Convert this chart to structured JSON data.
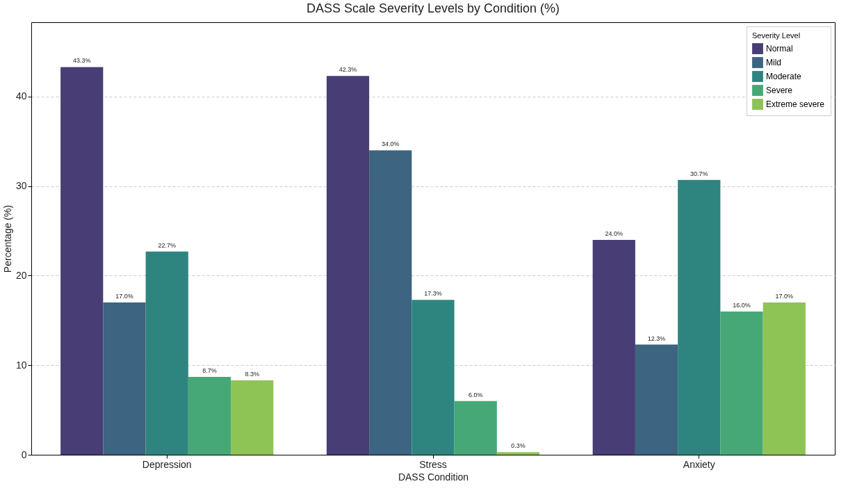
{
  "chart_data": {
    "type": "bar",
    "title": "DASS Scale Severity Levels by Condition (%)",
    "xlabel": "DASS Condition",
    "ylabel": "Percentage (%)",
    "legend_title": "Severity Level",
    "categories": [
      "Depression",
      "Stress",
      "Anxiety"
    ],
    "series": [
      {
        "name": "Normal",
        "color": "#483d74",
        "values": [
          43.3,
          42.3,
          24.0
        ],
        "value_labels": [
          "43.3%",
          "42.3%",
          "24.0%"
        ]
      },
      {
        "name": "Mild",
        "color": "#3d6480",
        "values": [
          17.0,
          34.0,
          12.3
        ],
        "value_labels": [
          "17.0%",
          "34.0%",
          "12.3%"
        ]
      },
      {
        "name": "Moderate",
        "color": "#2e8580",
        "values": [
          22.7,
          17.3,
          30.7
        ],
        "value_labels": [
          "22.7%",
          "17.3%",
          "30.7%"
        ]
      },
      {
        "name": "Severe",
        "color": "#46a877",
        "values": [
          8.7,
          6.0,
          16.0
        ],
        "value_labels": [
          "8.7%",
          "6.0%",
          "16.0%"
        ]
      },
      {
        "name": "Extreme severe",
        "color": "#8ec355",
        "values": [
          8.3,
          0.3,
          17.0
        ],
        "value_labels": [
          "8.3%",
          "0.3%",
          "17.0%"
        ]
      }
    ],
    "ylim": [
      0,
      48.3
    ],
    "yticks": [
      0,
      10,
      20,
      30,
      40
    ],
    "grid": "y",
    "legend": "top right"
  }
}
